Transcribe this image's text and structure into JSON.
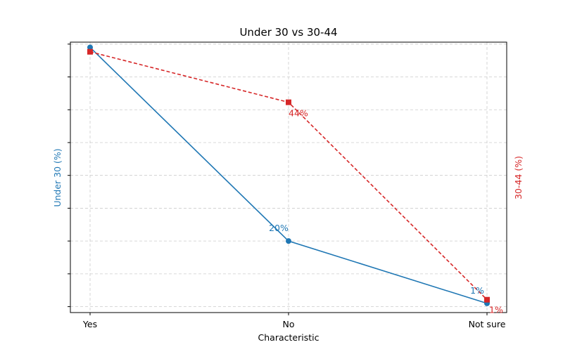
{
  "chart_data": {
    "type": "line",
    "title": "Under 30 vs 30-44",
    "xlabel": "Characteristic",
    "ylabel_left": "Under 30 (%)",
    "ylabel_right": "30-44 (%)",
    "categories": [
      "Yes",
      "No",
      "Not sure"
    ],
    "grid": true,
    "series": [
      {
        "name": "Under 30 (%)",
        "axis": "left",
        "values": [
          79,
          20,
          1
        ],
        "labels": [
          "",
          "20%",
          "1%"
        ],
        "color": "#1f77b4",
        "line_style": "solid",
        "marker": "circle"
      },
      {
        "name": "30-44 (%)",
        "axis": "right",
        "values": [
          55,
          44,
          1
        ],
        "labels": [
          "",
          "44%",
          "1%"
        ],
        "color": "#d62728",
        "line_style": "dashed",
        "marker": "square"
      }
    ],
    "ylim_left": [
      -1.8,
      80.6
    ],
    "ylim_right": [
      -1.8,
      57.1
    ]
  }
}
